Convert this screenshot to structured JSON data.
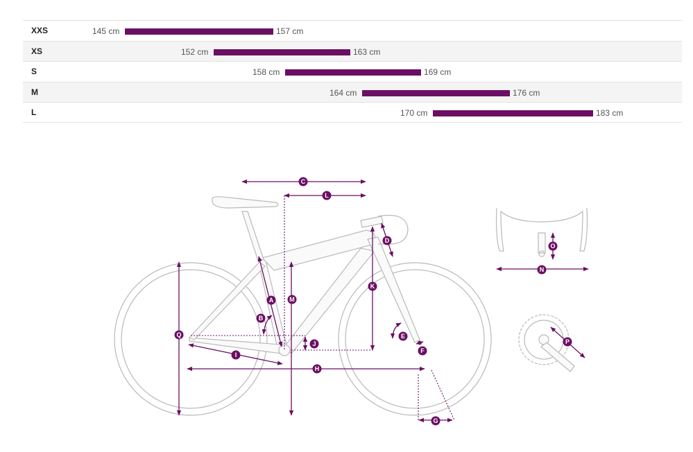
{
  "size_chart": {
    "rows": [
      {
        "size": "XXS",
        "min": "145 cm",
        "max": "157 cm"
      },
      {
        "size": "XS",
        "min": "152 cm",
        "max": "163 cm"
      },
      {
        "size": "S",
        "min": "158 cm",
        "max": "169 cm"
      },
      {
        "size": "M",
        "min": "164 cm",
        "max": "176 cm"
      },
      {
        "size": "L",
        "min": "170 cm",
        "max": "183 cm"
      }
    ]
  },
  "geometry": {
    "labels": {
      "A": "A",
      "B": "B",
      "C": "C",
      "D": "D",
      "E": "E",
      "F": "F",
      "G": "G",
      "H": "H",
      "I": "I",
      "J": "J",
      "K": "K",
      "L": "L",
      "M": "M",
      "N": "N",
      "O": "O",
      "P": "P",
      "Q": "Q"
    }
  },
  "colors": {
    "accent": "#6b0f63",
    "frame": "#b9b9b9",
    "row_alt": "#f4f4f4"
  }
}
